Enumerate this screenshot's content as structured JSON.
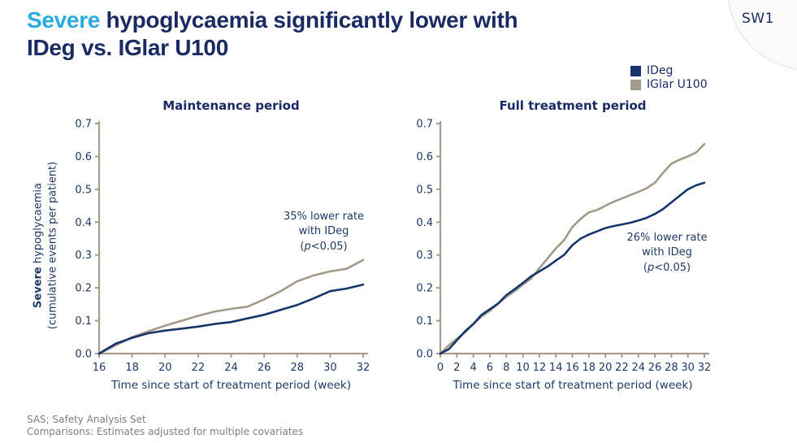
{
  "slide": {
    "badge": "SW1",
    "title_highlight": "Severe",
    "title_line1_rest": " hypoglycaemia significantly lower with",
    "title_line2": "IDeg vs. IGlar U100",
    "footer_line1": "SAS; Safety Analysis Set",
    "footer_line2": "Comparisons: Estimates adjusted for multiple covariates"
  },
  "colors": {
    "accent_blue": "#29abe2",
    "navy_title": "#1b2a63",
    "chart_text": "#1f3864",
    "axis": "#a69c8e",
    "ideg_line": "#17356b",
    "iglar_line": "#a39a8a",
    "footer_grey": "#7f7f7f"
  },
  "legend": {
    "items": [
      {
        "label": "IDeg",
        "color": "#17356b"
      },
      {
        "label": "IGlar U100",
        "color": "#a39a8a"
      }
    ]
  },
  "ylabel": {
    "bold": "Severe",
    "rest": " hypoglycaemia",
    "line2": "(cumulative events per patient)"
  },
  "chart_data": [
    {
      "type": "line",
      "title": "Maintenance period",
      "xlabel": "Time since start of treatment period (week)",
      "xlim": [
        16,
        32
      ],
      "ylim": [
        0,
        0.7
      ],
      "xticks": [
        16,
        18,
        20,
        22,
        24,
        26,
        28,
        30,
        32
      ],
      "yticks": [
        0.0,
        0.1,
        0.2,
        0.3,
        0.4,
        0.5,
        0.6,
        0.7
      ],
      "x": [
        16,
        17,
        18,
        19,
        20,
        21,
        22,
        23,
        24,
        25,
        26,
        27,
        28,
        29,
        30,
        31,
        32
      ],
      "series": [
        {
          "name": "IDeg",
          "color": "#17356b",
          "values": [
            0.0,
            0.03,
            0.048,
            0.062,
            0.07,
            0.076,
            0.082,
            0.09,
            0.096,
            0.107,
            0.118,
            0.133,
            0.148,
            0.168,
            0.19,
            0.198,
            0.21
          ]
        },
        {
          "name": "IGlar U100",
          "color": "#a39a8a",
          "values": [
            0.0,
            0.025,
            0.05,
            0.068,
            0.085,
            0.1,
            0.115,
            0.128,
            0.136,
            0.143,
            0.165,
            0.19,
            0.22,
            0.238,
            0.25,
            0.258,
            0.285
          ]
        }
      ],
      "annotation": {
        "line1": "35% lower rate",
        "line2": "with IDeg",
        "line3_pre": "(",
        "line3_italic": "p",
        "line3_post": "<0.05)"
      }
    },
    {
      "type": "line",
      "title": "Full treatment period",
      "xlabel": "Time since start of treatment period (week)",
      "xlim": [
        0,
        32
      ],
      "ylim": [
        0,
        0.7
      ],
      "xticks": [
        0,
        2,
        4,
        6,
        8,
        10,
        12,
        14,
        16,
        18,
        20,
        22,
        24,
        26,
        28,
        30,
        32
      ],
      "yticks": [
        0.0,
        0.1,
        0.2,
        0.3,
        0.4,
        0.5,
        0.6,
        0.7
      ],
      "x": [
        0,
        1,
        2,
        3,
        4,
        5,
        6,
        7,
        8,
        9,
        10,
        11,
        12,
        13,
        14,
        15,
        16,
        17,
        18,
        19,
        20,
        21,
        22,
        23,
        24,
        25,
        26,
        27,
        28,
        29,
        30,
        31,
        32
      ],
      "series": [
        {
          "name": "IDeg",
          "color": "#17356b",
          "values": [
            0.0,
            0.013,
            0.04,
            0.068,
            0.09,
            0.118,
            0.135,
            0.152,
            0.178,
            0.196,
            0.215,
            0.235,
            0.25,
            0.265,
            0.283,
            0.3,
            0.33,
            0.35,
            0.362,
            0.372,
            0.382,
            0.388,
            0.393,
            0.398,
            0.405,
            0.413,
            0.425,
            0.44,
            0.46,
            0.48,
            0.5,
            0.512,
            0.52
          ]
        },
        {
          "name": "IGlar U100",
          "color": "#a39a8a",
          "values": [
            0.0,
            0.025,
            0.045,
            0.065,
            0.09,
            0.113,
            0.13,
            0.152,
            0.173,
            0.19,
            0.21,
            0.228,
            0.26,
            0.29,
            0.32,
            0.345,
            0.385,
            0.41,
            0.43,
            0.437,
            0.45,
            0.462,
            0.472,
            0.482,
            0.492,
            0.503,
            0.52,
            0.55,
            0.578,
            0.59,
            0.6,
            0.612,
            0.638
          ]
        }
      ],
      "annotation": {
        "line1": "26% lower rate",
        "line2": "with IDeg",
        "line3_pre": "(",
        "line3_italic": "p",
        "line3_post": "<0.05)"
      }
    }
  ]
}
